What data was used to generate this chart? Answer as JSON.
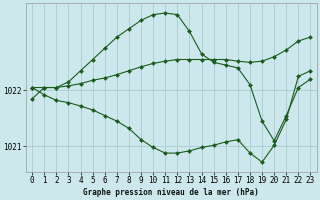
{
  "title": "Graphe pression niveau de la mer (hPa)",
  "background_color": "#cce8ec",
  "grid_color": "#aaccd0",
  "line_color": "#1a5c1a",
  "marker_color": "#1a5c1a",
  "xlim": [
    -0.5,
    23.5
  ],
  "ylim": [
    1020.55,
    1023.55
  ],
  "yticks": [
    1021,
    1022
  ],
  "xticks": [
    0,
    1,
    2,
    3,
    4,
    5,
    6,
    7,
    8,
    9,
    10,
    11,
    12,
    13,
    14,
    15,
    16,
    17,
    18,
    19,
    20,
    21,
    22,
    23
  ],
  "series": [
    [
      1021.85,
      1022.05,
      1022.05,
      1022.15,
      1022.35,
      1022.55,
      1022.75,
      1022.95,
      1023.1,
      1023.25,
      1023.35,
      1023.38,
      1023.35,
      1023.05,
      1022.65,
      1022.5,
      1022.45,
      1022.4,
      1022.1,
      1021.45,
      1021.1,
      1021.55,
      1022.05,
      1022.2
    ],
    [
      1022.05,
      1022.05,
      1022.05,
      1022.08,
      1022.12,
      1022.18,
      1022.22,
      1022.28,
      1022.35,
      1022.42,
      1022.48,
      1022.52,
      1022.55,
      1022.55,
      1022.55,
      1022.55,
      1022.55,
      1022.52,
      1022.5,
      1022.52,
      1022.6,
      1022.72,
      1022.88,
      1022.95
    ],
    [
      1022.05,
      1021.92,
      1021.82,
      1021.78,
      1021.72,
      1021.65,
      1021.55,
      1021.45,
      1021.32,
      1021.12,
      1020.98,
      1020.88,
      1020.88,
      1020.92,
      1020.98,
      1021.02,
      1021.08,
      1021.12,
      1020.88,
      1020.72,
      1021.02,
      1021.48,
      1022.25,
      1022.35
    ]
  ]
}
